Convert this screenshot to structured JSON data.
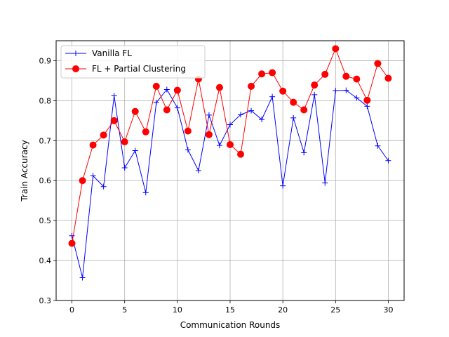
{
  "chart_data": {
    "type": "line",
    "title": "",
    "xlabel": "Communication Rounds",
    "ylabel": "Train Accuracy",
    "xlim": [
      -1.5,
      31.5
    ],
    "ylim": [
      0.3,
      0.95
    ],
    "xticks": [
      0,
      5,
      10,
      15,
      20,
      25,
      30
    ],
    "yticks": [
      0.3,
      0.4,
      0.5,
      0.6,
      0.7,
      0.8,
      0.9
    ],
    "grid": true,
    "legend_position": "top-left",
    "x": [
      0,
      1,
      2,
      3,
      4,
      5,
      6,
      7,
      8,
      9,
      10,
      11,
      12,
      13,
      14,
      15,
      16,
      17,
      18,
      19,
      20,
      21,
      22,
      23,
      24,
      25,
      26,
      27,
      28,
      29,
      30
    ],
    "series": [
      {
        "name": "Vanilla FL",
        "color": "#0000ff",
        "marker": "plus",
        "values": [
          0.462,
          0.357,
          0.612,
          0.585,
          0.812,
          0.632,
          0.675,
          0.57,
          0.795,
          0.828,
          0.782,
          0.677,
          0.625,
          0.764,
          0.688,
          0.74,
          0.765,
          0.775,
          0.753,
          0.81,
          0.587,
          0.757,
          0.67,
          0.815,
          0.594,
          0.825,
          0.826,
          0.807,
          0.786,
          0.687,
          0.65
        ]
      },
      {
        "name": "FL + Partial Clustering",
        "color": "#ff0000",
        "marker": "circle",
        "values": [
          0.443,
          0.6,
          0.689,
          0.714,
          0.75,
          0.697,
          0.773,
          0.722,
          0.836,
          0.777,
          0.826,
          0.724,
          0.854,
          0.715,
          0.833,
          0.69,
          0.666,
          0.836,
          0.867,
          0.87,
          0.824,
          0.796,
          0.777,
          0.839,
          0.866,
          0.93,
          0.861,
          0.854,
          0.801,
          0.893,
          0.856
        ]
      }
    ]
  }
}
